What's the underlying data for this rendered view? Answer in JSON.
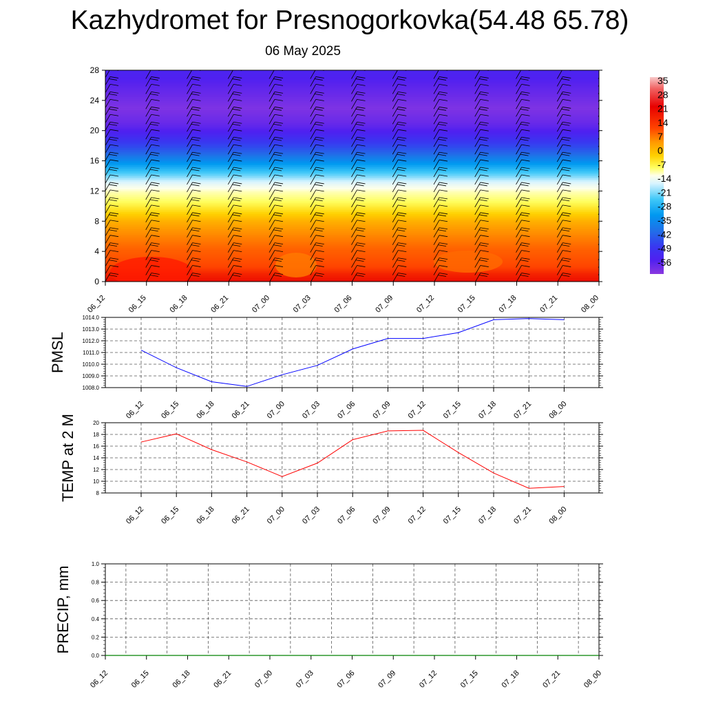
{
  "title": "Kazhydromet for Presnogorkovka(54.48 65.78)",
  "subtitle": "06 May 2025",
  "colorbar": {
    "labels": [
      "35",
      "28",
      "21",
      "14",
      "7",
      "0",
      "-7",
      "-14",
      "-21",
      "-28",
      "-35",
      "-42",
      "-49",
      "-56"
    ]
  },
  "chart_data": [
    {
      "type": "heatmap",
      "title": "",
      "ylabel": "",
      "ylim": [
        0,
        28
      ],
      "yticks": [
        "0",
        "4",
        "8",
        "12",
        "16",
        "20",
        "24",
        "28"
      ],
      "x_ticks": [
        "06_12",
        "06_15",
        "06_18",
        "06_21",
        "07_00",
        "07_03",
        "07_06",
        "07_09",
        "07_12",
        "07_15",
        "07_18",
        "07_21",
        "08_00"
      ],
      "levels": [
        0,
        1,
        2,
        3,
        4,
        5,
        6,
        7,
        8,
        9,
        10,
        11,
        12,
        13,
        14,
        15,
        16,
        17,
        18,
        19,
        20,
        21,
        22,
        23,
        24,
        25,
        26,
        27,
        28
      ],
      "values_by_level": [
        17,
        15,
        12,
        10,
        8,
        6,
        4,
        2,
        0,
        -3,
        -6,
        -9,
        -12,
        -18,
        -25,
        -31,
        -37,
        -43,
        -48,
        -52,
        -55,
        -57,
        -58,
        -59,
        -58,
        -57,
        -56,
        -55,
        -54
      ],
      "overlay": "wind barbs"
    },
    {
      "type": "line",
      "ylabel": "PMSL",
      "ylim": [
        1008.0,
        1014.0
      ],
      "yticks": [
        "1008.0",
        "1009.0",
        "1010.0",
        "1011.0",
        "1012.0",
        "1013.0",
        "1014.0"
      ],
      "x_ticks": [
        "06_12",
        "06_15",
        "06_18",
        "06_21",
        "07_00",
        "07_03",
        "07_06",
        "07_09",
        "07_12",
        "07_15",
        "07_18",
        "07_21",
        "08_00"
      ],
      "series": [
        {
          "color": "#0000ff",
          "values": [
            1011.2,
            1009.7,
            1008.5,
            1008.1,
            1009.1,
            1009.9,
            1011.3,
            1012.2,
            1012.2,
            1012.7,
            1013.8,
            1013.9,
            1013.8
          ]
        }
      ],
      "grid": true
    },
    {
      "type": "line",
      "ylabel": "TEMP at 2 M",
      "ylim": [
        8,
        20
      ],
      "yticks": [
        "8",
        "10",
        "12",
        "14",
        "16",
        "18",
        "20"
      ],
      "x_ticks": [
        "06_12",
        "06_15",
        "06_18",
        "06_21",
        "07_00",
        "07_03",
        "07_06",
        "07_09",
        "07_12",
        "07_15",
        "07_18",
        "07_21",
        "08_00"
      ],
      "series": [
        {
          "color": "#ff0000",
          "values": [
            16.7,
            18.1,
            15.4,
            13.3,
            10.8,
            13.1,
            17.1,
            18.6,
            18.7,
            14.9,
            11.4,
            8.8,
            9.1
          ]
        }
      ],
      "grid": true
    },
    {
      "type": "line",
      "ylabel": "PRECIP, mm",
      "ylim": [
        0.0,
        1.0
      ],
      "yticks": [
        "0.0",
        "0.2",
        "0.4",
        "0.6",
        "0.8",
        "1.0"
      ],
      "x_ticks": [
        "06_12",
        "06_15",
        "06_18",
        "06_21",
        "07_00",
        "07_03",
        "07_06",
        "07_09",
        "07_12",
        "07_15",
        "07_18",
        "07_21",
        "08_00"
      ],
      "series": [
        {
          "color": "#008000",
          "values": [
            0,
            0,
            0,
            0,
            0,
            0,
            0,
            0,
            0,
            0,
            0,
            0,
            0
          ]
        }
      ],
      "grid": true
    }
  ]
}
